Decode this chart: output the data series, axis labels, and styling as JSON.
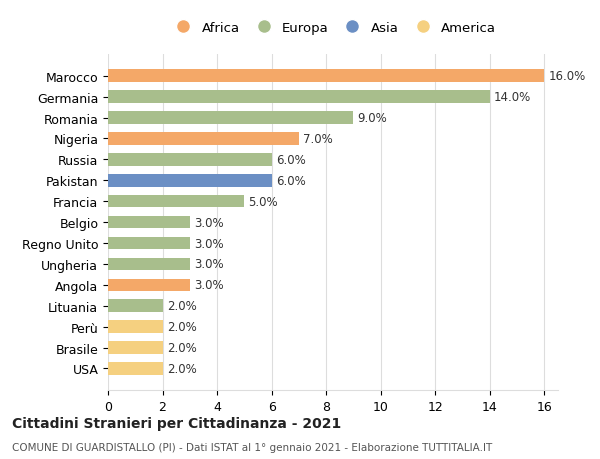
{
  "categories": [
    "USA",
    "Brasile",
    "Perù",
    "Lituania",
    "Angola",
    "Ungheria",
    "Regno Unito",
    "Belgio",
    "Francia",
    "Pakistan",
    "Russia",
    "Nigeria",
    "Romania",
    "Germania",
    "Marocco"
  ],
  "values": [
    2.0,
    2.0,
    2.0,
    2.0,
    3.0,
    3.0,
    3.0,
    3.0,
    5.0,
    6.0,
    6.0,
    7.0,
    9.0,
    14.0,
    16.0
  ],
  "continents": [
    "America",
    "America",
    "America",
    "Europa",
    "Africa",
    "Europa",
    "Europa",
    "Europa",
    "Europa",
    "Asia",
    "Europa",
    "Africa",
    "Europa",
    "Europa",
    "Africa"
  ],
  "colors": {
    "Africa": "#F4A868",
    "Europa": "#A8BE8C",
    "Asia": "#6B8FC4",
    "America": "#F5D080"
  },
  "legend_order": [
    "Africa",
    "Europa",
    "Asia",
    "America"
  ],
  "xlim": [
    0,
    16
  ],
  "xticks": [
    0,
    2,
    4,
    6,
    8,
    10,
    12,
    14,
    16
  ],
  "title": "Cittadini Stranieri per Cittadinanza - 2021",
  "subtitle": "COMUNE DI GUARDISTALLO (PI) - Dati ISTAT al 1° gennaio 2021 - Elaborazione TUTTITALIA.IT",
  "bar_height": 0.6,
  "background_color": "#ffffff",
  "grid_color": "#dddddd"
}
